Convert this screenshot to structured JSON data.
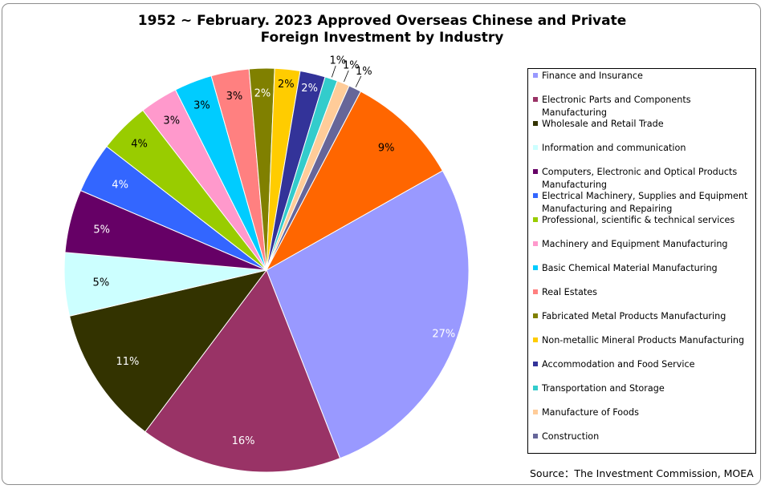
{
  "chart_data": {
    "type": "pie",
    "title": "1952 ~ February. 2023 Approved Overseas Chinese and Private\nForeign Investment by Industry",
    "legend_position": "right",
    "slices": [
      {
        "label": "Finance and Insurance",
        "value": 27,
        "display": "27%",
        "color": "#9999ff",
        "label_color": "#ffffff"
      },
      {
        "label": "Electronic Parts and Components Manufacturing",
        "value": 16,
        "display": "16%",
        "color": "#993366",
        "label_color": "#ffffff"
      },
      {
        "label": "Wholesale and Retail Trade",
        "value": 11,
        "display": "11%",
        "color": "#333300",
        "label_color": "#ffffff"
      },
      {
        "label": "Information and communication",
        "value": 5,
        "display": "5%",
        "color": "#ccffff",
        "label_color": "#000000"
      },
      {
        "label": "Computers, Electronic and Optical Products Manufacturing",
        "value": 5,
        "display": "5%",
        "color": "#660066",
        "label_color": "#ffffff"
      },
      {
        "label": "Electrical Machinery, Supplies and Equipment Manufacturing and Repairing",
        "value": 4,
        "display": "4%",
        "color": "#3366ff",
        "label_color": "#ffffff"
      },
      {
        "label": "Professional, scientific & technical services",
        "value": 4,
        "display": "4%",
        "color": "#99cc00",
        "label_color": "#000000"
      },
      {
        "label": "Machinery and Equipment Manufacturing",
        "value": 3,
        "display": "3%",
        "color": "#ff99cc",
        "label_color": "#000000"
      },
      {
        "label": "Basic Chemical Material Manufacturing",
        "value": 3,
        "display": "3%",
        "color": "#00ccff",
        "label_color": "#000000"
      },
      {
        "label": "Real Estates",
        "value": 3,
        "display": "3%",
        "color": "#ff8080",
        "label_color": "#000000"
      },
      {
        "label": "Fabricated Metal Products Manufacturing",
        "value": 2,
        "display": "2%",
        "color": "#808000",
        "label_color": "#ffffff"
      },
      {
        "label": "Non-metallic Mineral Products Manufacturing",
        "value": 2,
        "display": "2%",
        "color": "#ffcc00",
        "label_color": "#000000"
      },
      {
        "label": "Accommodation and Food Service",
        "value": 2,
        "display": "2%",
        "color": "#333399",
        "label_color": "#ffffff"
      },
      {
        "label": "Transportation and Storage",
        "value": 1,
        "display": "1%",
        "color": "#33cccc",
        "label_color": "#000000"
      },
      {
        "label": "Manufacture of Foods",
        "value": 1,
        "display": "1%",
        "color": "#ffcc99",
        "label_color": "#000000"
      },
      {
        "label": "Construction",
        "value": 1,
        "display": "1%",
        "color": "#666699",
        "label_color": "#000000"
      },
      {
        "label": "",
        "value": 9,
        "display": "9%",
        "color": "#ff6600",
        "label_color": "#000000"
      }
    ]
  },
  "source": "Source：The Investment Commission, MOEA"
}
